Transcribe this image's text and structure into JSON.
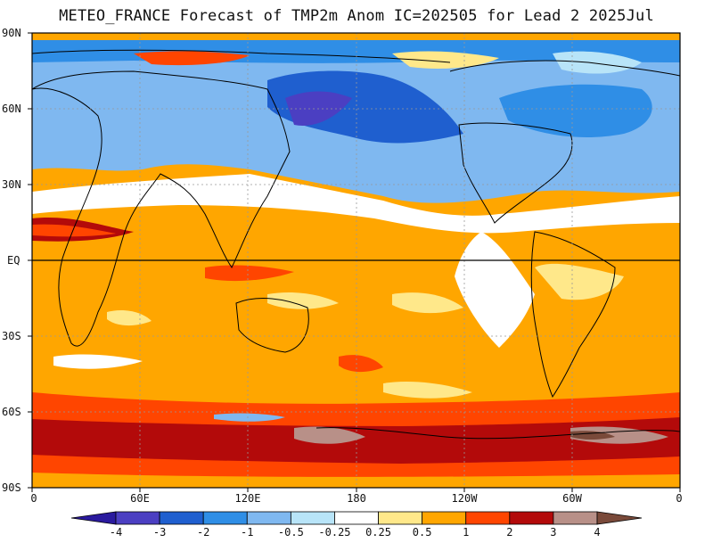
{
  "title": "METEO_FRANCE Forecast of TMP2m Anom IC=202505 for Lead 2 2025Jul",
  "lat_labels": [
    "90N",
    "60N",
    "30N",
    "EQ",
    "30S",
    "60S",
    "90S"
  ],
  "lon_labels": [
    "0",
    "60E",
    "120E",
    "180",
    "120W",
    "60W",
    "0"
  ],
  "colorbar": {
    "labels": [
      "-4",
      "-3",
      "-2",
      "-1",
      "-0.5",
      "-0.25",
      "0.25",
      "0.5",
      "1",
      "2",
      "3",
      "4"
    ],
    "colors": [
      "#2a1a9e",
      "#4b3fc2",
      "#1f5fcf",
      "#2f8ee6",
      "#7fb8f0",
      "#b8e4f8",
      "#ffffff",
      "#ffe88a",
      "#ffa600",
      "#ff4500",
      "#b30a0a",
      "#b89088",
      "#7a4a3a"
    ]
  },
  "map_palette": {
    "ocean_base": "#ffa600",
    "equator_line": "#000000",
    "grid_line": "#999999"
  }
}
